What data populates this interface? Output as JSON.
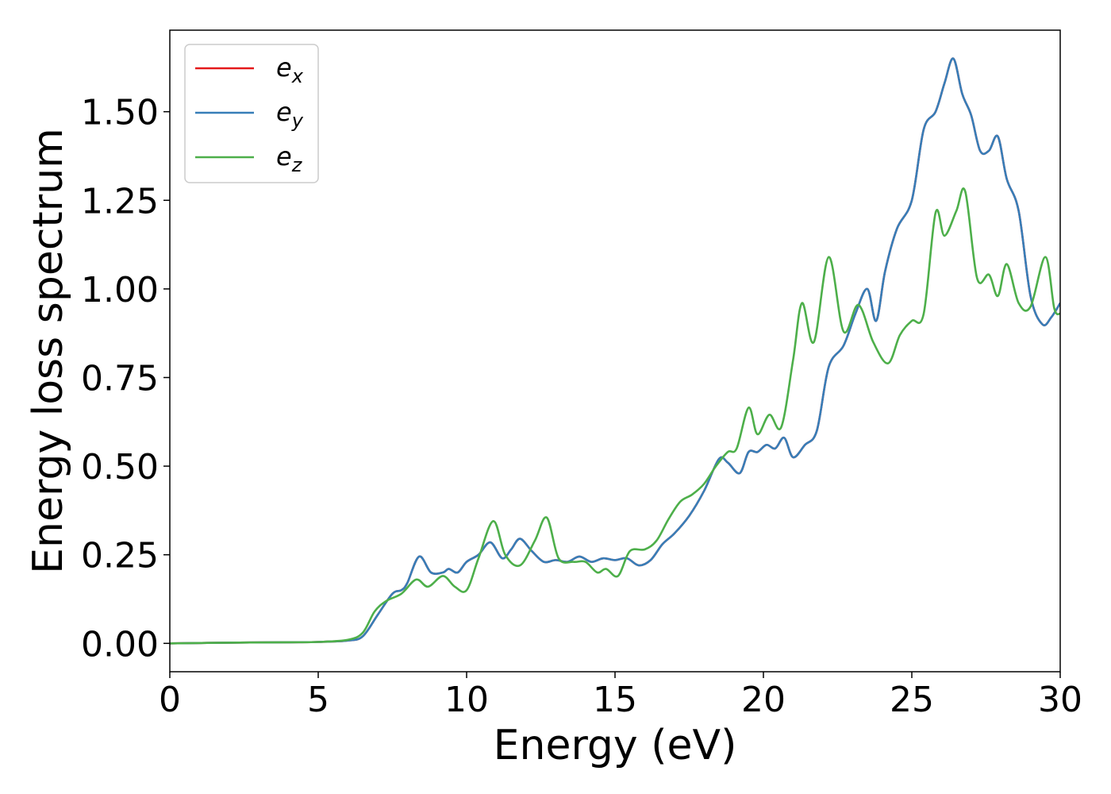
{
  "chart_data": {
    "type": "line",
    "xlabel": "Energy (eV)",
    "ylabel": "Energy loss spectrum",
    "xlim": [
      0,
      30
    ],
    "ylim": [
      -0.08,
      1.73
    ],
    "xticks": [
      0,
      5,
      10,
      15,
      20,
      25,
      30
    ],
    "yticks": [
      0.0,
      0.25,
      0.5,
      0.75,
      1.0,
      1.25,
      1.5
    ],
    "xtick_labels": [
      "0",
      "5",
      "10",
      "15",
      "20",
      "25",
      "30"
    ],
    "ytick_labels": [
      "0.00",
      "0.25",
      "0.50",
      "0.75",
      "1.00",
      "1.25",
      "1.50"
    ],
    "grid": false,
    "legend_position": "top-left",
    "series": [
      {
        "name": "e",
        "subscript": "x",
        "color": "#e41a1c",
        "x": [
          0,
          2,
          4,
          5,
          6,
          6.5,
          7,
          7.5,
          7.8,
          8,
          8.4,
          8.8,
          9.2,
          9.4,
          9.7,
          10,
          10.4,
          10.8,
          11.2,
          11.5,
          11.8,
          12.2,
          12.6,
          13,
          13.4,
          13.8,
          14.2,
          14.6,
          15,
          15.4,
          15.8,
          16.2,
          16.6,
          17,
          17.5,
          18,
          18.5,
          18.8,
          19.2,
          19.5,
          19.8,
          20.1,
          20.4,
          20.7,
          21,
          21.4,
          21.8,
          22.2,
          22.7,
          23.1,
          23.5,
          23.8,
          24.1,
          24.5,
          25,
          25.4,
          25.8,
          26.1,
          26.4,
          26.7,
          27,
          27.3,
          27.6,
          27.9,
          28.2,
          28.6,
          29,
          29.4,
          29.7,
          30
        ],
        "y": [
          0.0,
          0.002,
          0.003,
          0.004,
          0.008,
          0.02,
          0.08,
          0.14,
          0.15,
          0.17,
          0.245,
          0.2,
          0.2,
          0.21,
          0.2,
          0.23,
          0.25,
          0.285,
          0.24,
          0.265,
          0.295,
          0.26,
          0.23,
          0.235,
          0.23,
          0.245,
          0.23,
          0.24,
          0.235,
          0.24,
          0.22,
          0.235,
          0.28,
          0.31,
          0.36,
          0.43,
          0.52,
          0.51,
          0.48,
          0.54,
          0.54,
          0.56,
          0.55,
          0.58,
          0.525,
          0.56,
          0.6,
          0.78,
          0.84,
          0.93,
          1.0,
          0.91,
          1.05,
          1.17,
          1.25,
          1.45,
          1.5,
          1.58,
          1.65,
          1.55,
          1.49,
          1.39,
          1.39,
          1.43,
          1.31,
          1.22,
          0.98,
          0.9,
          0.92,
          0.96
        ]
      },
      {
        "name": "e",
        "subscript": "y",
        "color": "#377eb8",
        "x": [
          0,
          2,
          4,
          5,
          6,
          6.5,
          7,
          7.5,
          7.8,
          8,
          8.4,
          8.8,
          9.2,
          9.4,
          9.7,
          10,
          10.4,
          10.8,
          11.2,
          11.5,
          11.8,
          12.2,
          12.6,
          13,
          13.4,
          13.8,
          14.2,
          14.6,
          15,
          15.4,
          15.8,
          16.2,
          16.6,
          17,
          17.5,
          18,
          18.5,
          18.8,
          19.2,
          19.5,
          19.8,
          20.1,
          20.4,
          20.7,
          21,
          21.4,
          21.8,
          22.2,
          22.7,
          23.1,
          23.5,
          23.8,
          24.1,
          24.5,
          25,
          25.4,
          25.8,
          26.1,
          26.4,
          26.7,
          27,
          27.3,
          27.6,
          27.9,
          28.2,
          28.6,
          29,
          29.4,
          29.7,
          30
        ],
        "y": [
          0.0,
          0.002,
          0.003,
          0.004,
          0.008,
          0.02,
          0.08,
          0.14,
          0.15,
          0.17,
          0.245,
          0.2,
          0.2,
          0.21,
          0.2,
          0.23,
          0.25,
          0.285,
          0.24,
          0.265,
          0.295,
          0.26,
          0.23,
          0.235,
          0.23,
          0.245,
          0.23,
          0.24,
          0.235,
          0.24,
          0.22,
          0.235,
          0.28,
          0.31,
          0.36,
          0.43,
          0.52,
          0.51,
          0.48,
          0.54,
          0.54,
          0.56,
          0.55,
          0.58,
          0.525,
          0.56,
          0.6,
          0.78,
          0.84,
          0.93,
          1.0,
          0.91,
          1.05,
          1.17,
          1.25,
          1.45,
          1.5,
          1.58,
          1.65,
          1.55,
          1.49,
          1.39,
          1.39,
          1.43,
          1.31,
          1.22,
          0.98,
          0.9,
          0.92,
          0.96
        ]
      },
      {
        "name": "e",
        "subscript": "z",
        "color": "#4daf4a",
        "x": [
          0,
          2,
          4,
          5,
          6,
          6.5,
          6.9,
          7.3,
          7.8,
          8.3,
          8.7,
          9.2,
          9.6,
          10,
          10.4,
          10.9,
          11.3,
          11.8,
          12.3,
          12.7,
          13.1,
          13.6,
          14,
          14.4,
          14.7,
          15.1,
          15.5,
          16,
          16.4,
          16.8,
          17.2,
          17.6,
          18,
          18.4,
          18.8,
          19.1,
          19.5,
          19.8,
          20.2,
          20.6,
          21,
          21.3,
          21.7,
          22.2,
          22.7,
          23.2,
          23.7,
          24.2,
          24.6,
          25,
          25.4,
          25.8,
          26.1,
          26.5,
          26.8,
          27.2,
          27.6,
          27.9,
          28.2,
          28.6,
          29,
          29.5,
          29.8,
          30
        ],
        "y": [
          0.0,
          0.002,
          0.003,
          0.004,
          0.01,
          0.03,
          0.09,
          0.12,
          0.14,
          0.18,
          0.16,
          0.19,
          0.16,
          0.15,
          0.24,
          0.345,
          0.25,
          0.22,
          0.29,
          0.355,
          0.24,
          0.23,
          0.23,
          0.2,
          0.21,
          0.19,
          0.26,
          0.265,
          0.29,
          0.35,
          0.4,
          0.42,
          0.45,
          0.5,
          0.54,
          0.55,
          0.665,
          0.59,
          0.645,
          0.61,
          0.8,
          0.96,
          0.85,
          1.09,
          0.88,
          0.955,
          0.85,
          0.79,
          0.87,
          0.91,
          0.93,
          1.215,
          1.15,
          1.22,
          1.275,
          1.03,
          1.04,
          0.98,
          1.07,
          0.96,
          0.95,
          1.09,
          0.945,
          0.93
        ]
      }
    ]
  }
}
